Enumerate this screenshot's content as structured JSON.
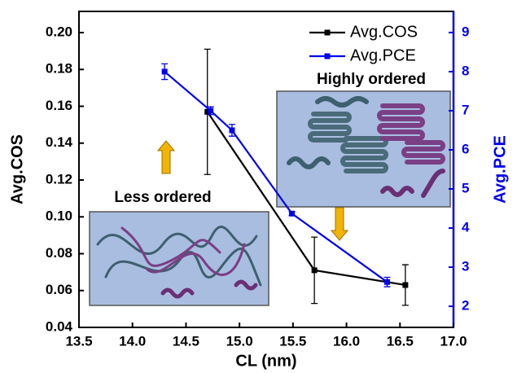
{
  "chart_data": {
    "type": "line",
    "x_label": "CL (nm)",
    "y_label": "Avg.COS",
    "y2_label": "Avg.PCE",
    "annotations": [
      "Highly ordered",
      "Less ordered"
    ],
    "xlim": [
      13.5,
      17.0
    ],
    "xticks": [
      13.5,
      {
        "value": 14,
        "label": "14.0"
      },
      14.5,
      {
        "value": 15,
        "label": "15.0"
      },
      15.5,
      {
        "value": 16,
        "label": "16.0"
      },
      16.5,
      {
        "value": 17,
        "label": "17.0"
      }
    ],
    "ylim": [
      0.04,
      0.2115
    ],
    "yticks": [
      0.04,
      0.06,
      0.08,
      {
        "value": 0.1,
        "label": "0.10"
      },
      0.12,
      0.14,
      0.16,
      0.18,
      {
        "value": 0.2,
        "label": "0.20"
      }
    ],
    "y2lim": [
      1.46,
      9.54
    ],
    "y2ticks": [
      2,
      3,
      4,
      5,
      6,
      7,
      8,
      9
    ],
    "series": [
      {
        "name": "Avg.COS",
        "color": "#000000",
        "x": [
          14.7,
          15.7,
          16.55
        ],
        "values": [
          0.157,
          0.071,
          0.063
        ],
        "errors": [
          0.034,
          0.018,
          0.011
        ]
      },
      {
        "name": "Avg.PCE",
        "color": "#0000ee",
        "axis": "y2",
        "x": [
          14.3,
          14.73,
          14.93,
          15.49,
          16.38
        ],
        "values": [
          8.0,
          7.0,
          6.5,
          4.37,
          2.62
        ],
        "errors": [
          0.2,
          0.1,
          0.15,
          0.05,
          0.12
        ]
      }
    ]
  }
}
